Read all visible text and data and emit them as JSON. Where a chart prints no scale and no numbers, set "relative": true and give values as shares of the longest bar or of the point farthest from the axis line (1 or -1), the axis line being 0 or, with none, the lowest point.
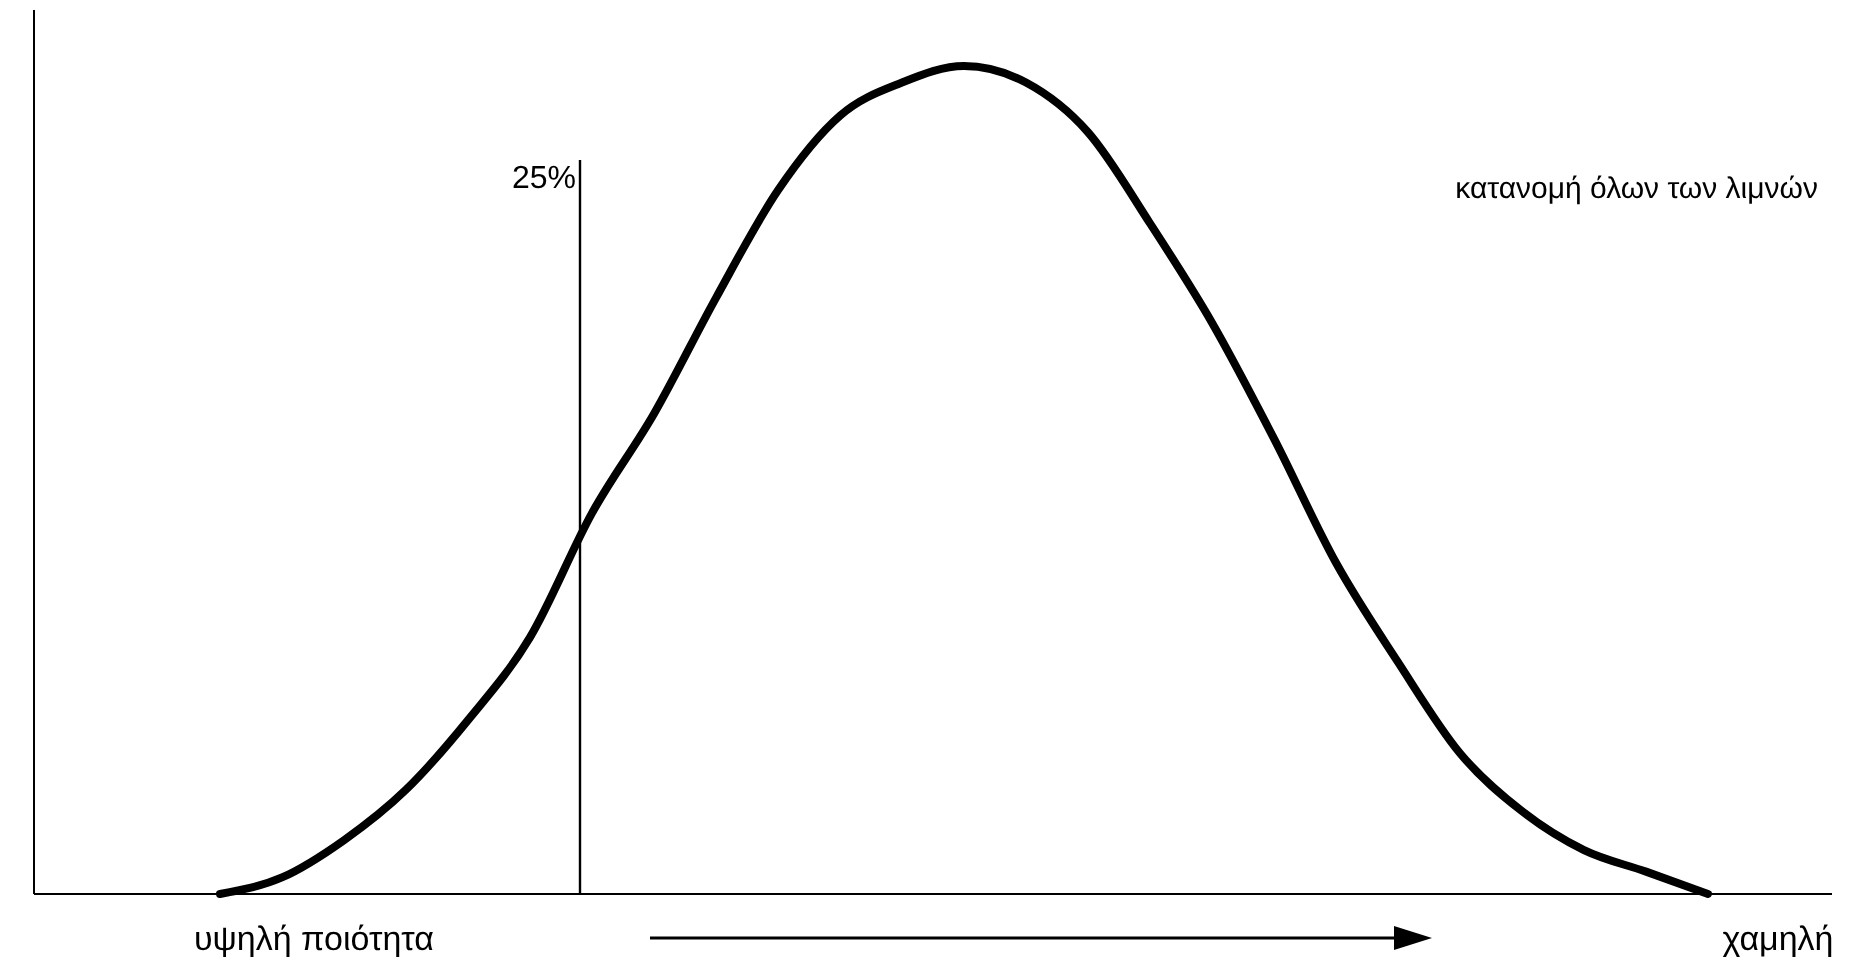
{
  "chart_data": {
    "type": "line",
    "relative": true,
    "categories": [
      null,
      null,
      null,
      null,
      null,
      null,
      null,
      null,
      null,
      null,
      null,
      null,
      null,
      null,
      null,
      null,
      null,
      null,
      null,
      null,
      null,
      null,
      null,
      null,
      null,
      null,
      null,
      null,
      null,
      null
    ],
    "series": [
      {
        "name": "κατανομή όλων των λιμνών",
        "color": "#000000",
        "values": [
          null,
          null,
          null,
          0,
          0.02,
          0.065,
          0.126,
          0.21,
          0.31,
          0.46,
          0.58,
          0.72,
          0.85,
          0.94,
          0.98,
          1,
          0.98,
          0.92,
          0.81,
          0.69,
          0.55,
          0.4,
          0.28,
          0.17,
          0.1,
          0.053,
          0.027,
          0,
          null,
          null
        ]
      }
    ],
    "annotations": [
      "υψηλή ποιότητα",
      "χαμηλή",
      "25%"
    ],
    "marker": "none",
    "line_style": "solid",
    "grid": false,
    "legend": false
  }
}
